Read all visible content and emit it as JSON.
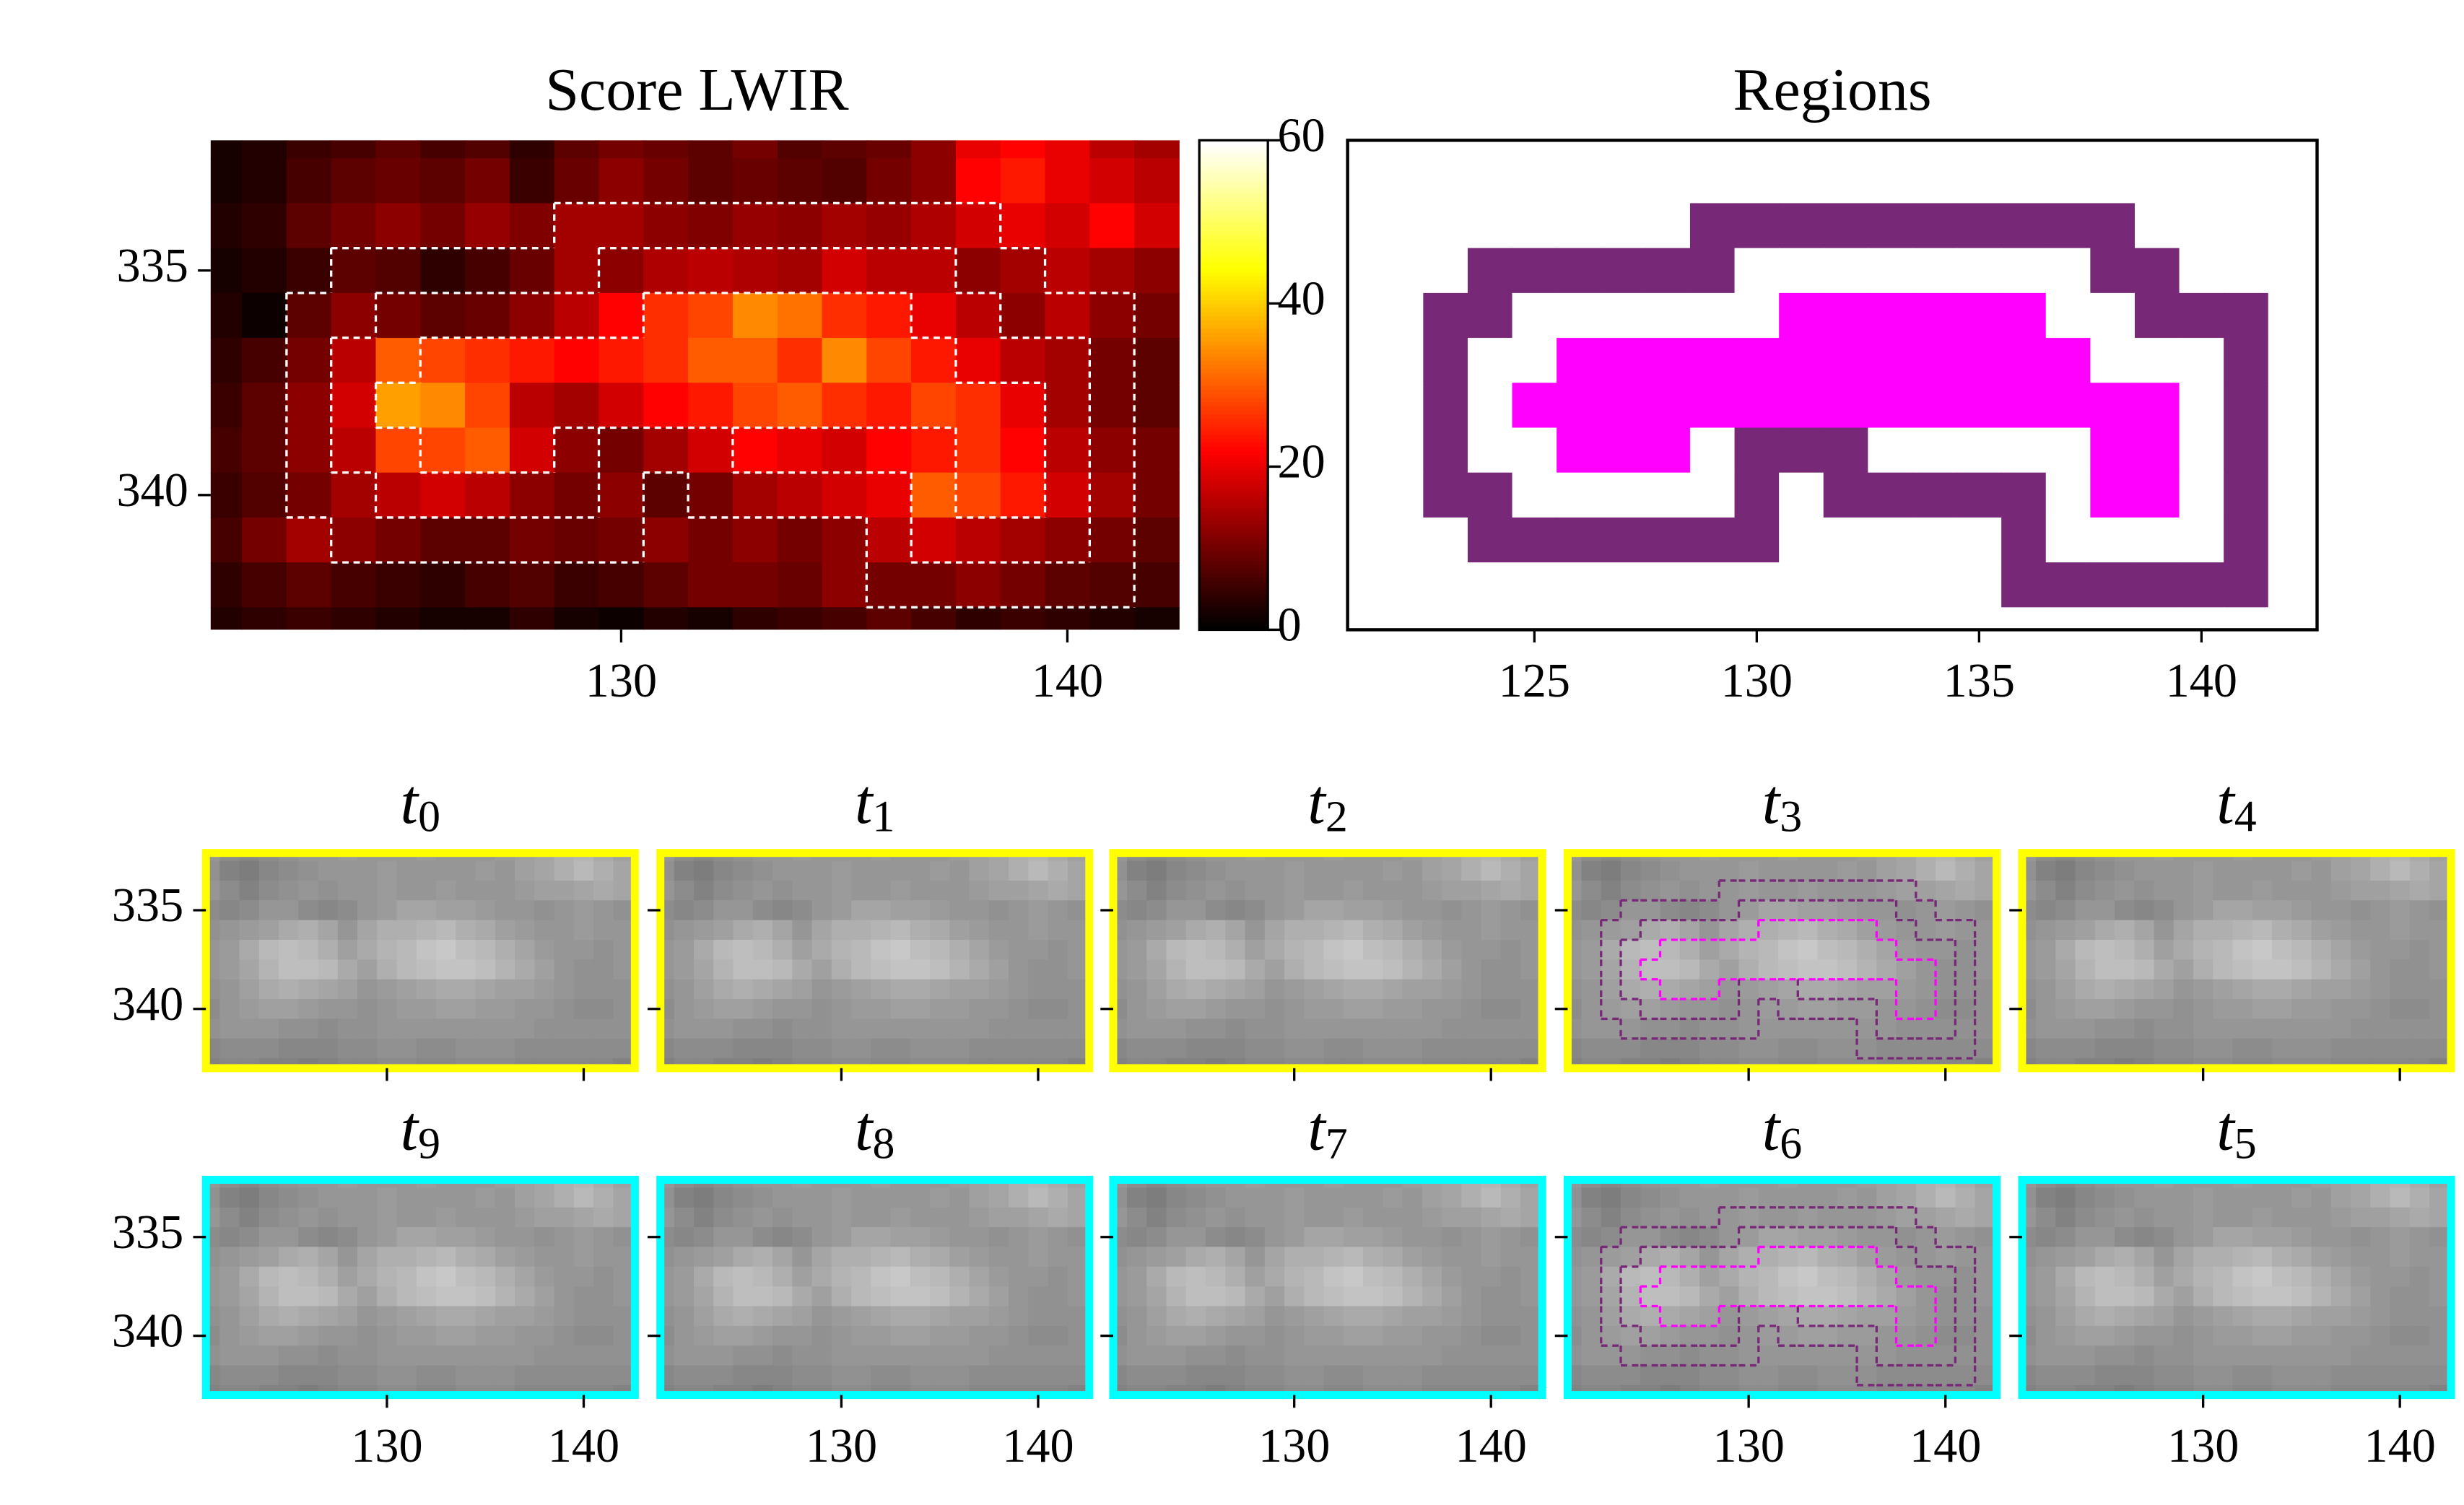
{
  "chart_data": [
    {
      "type": "heatmap",
      "title": "Score LWIR",
      "x": [
        121,
        122,
        123,
        124,
        125,
        126,
        127,
        128,
        129,
        130,
        131,
        132,
        133,
        134,
        135,
        136,
        137,
        138,
        139,
        140,
        141,
        142
      ],
      "y": [
        332,
        333,
        334,
        335,
        336,
        337,
        338,
        339,
        340,
        341,
        342,
        343
      ],
      "values": [
        [
          2,
          3,
          5,
          6,
          8,
          6,
          7,
          4,
          8,
          10,
          9,
          8,
          10,
          7,
          8,
          9,
          12,
          20,
          22,
          20,
          16,
          14
        ],
        [
          2,
          3,
          6,
          8,
          9,
          8,
          10,
          5,
          9,
          12,
          10,
          8,
          9,
          8,
          7,
          10,
          12,
          22,
          24,
          20,
          18,
          16
        ],
        [
          3,
          4,
          8,
          10,
          12,
          10,
          13,
          11,
          14,
          14,
          12,
          11,
          13,
          12,
          14,
          13,
          15,
          18,
          20,
          18,
          22,
          18
        ],
        [
          2,
          3,
          5,
          8,
          7,
          4,
          6,
          9,
          14,
          12,
          15,
          16,
          15,
          14,
          18,
          16,
          16,
          12,
          14,
          16,
          14,
          12
        ],
        [
          3,
          1,
          8,
          12,
          10,
          8,
          9,
          12,
          16,
          22,
          26,
          28,
          34,
          32,
          26,
          24,
          20,
          16,
          12,
          16,
          12,
          10
        ],
        [
          4,
          6,
          10,
          16,
          30,
          28,
          26,
          24,
          22,
          24,
          26,
          30,
          30,
          26,
          34,
          28,
          24,
          20,
          16,
          14,
          10,
          8
        ],
        [
          5,
          8,
          12,
          18,
          36,
          34,
          28,
          16,
          14,
          18,
          22,
          24,
          28,
          30,
          26,
          24,
          28,
          26,
          20,
          14,
          10,
          8
        ],
        [
          6,
          8,
          12,
          16,
          28,
          28,
          30,
          18,
          12,
          10,
          14,
          18,
          22,
          20,
          18,
          22,
          24,
          26,
          22,
          16,
          12,
          10
        ],
        [
          5,
          7,
          10,
          14,
          16,
          18,
          16,
          12,
          10,
          12,
          8,
          10,
          14,
          16,
          18,
          20,
          30,
          28,
          24,
          18,
          14,
          10
        ],
        [
          6,
          10,
          14,
          12,
          10,
          8,
          8,
          10,
          9,
          10,
          12,
          10,
          12,
          10,
          12,
          16,
          18,
          16,
          14,
          12,
          10,
          8
        ],
        [
          4,
          6,
          8,
          6,
          5,
          4,
          6,
          7,
          5,
          6,
          8,
          10,
          10,
          9,
          12,
          10,
          10,
          12,
          10,
          8,
          7,
          6
        ],
        [
          3,
          4,
          5,
          4,
          3,
          2,
          2,
          4,
          2,
          1,
          3,
          2,
          4,
          5,
          6,
          8,
          6,
          4,
          5,
          4,
          3,
          2
        ]
      ],
      "xlim": [
        120.8,
        142.6
      ],
      "ylim": [
        343,
        332.1
      ],
      "xticks": [
        130,
        140
      ],
      "yticks": [
        335,
        340
      ],
      "colormap": "hot",
      "clim": [
        0,
        60
      ],
      "colorbar_ticks": [
        0,
        20,
        40,
        60
      ],
      "contour_color": "#ffffff"
    },
    {
      "type": "regions",
      "title": "Regions",
      "x": [
        121,
        122,
        123,
        124,
        125,
        126,
        127,
        128,
        129,
        130,
        131,
        132,
        133,
        134,
        135,
        136,
        137,
        138,
        139,
        140,
        141,
        142
      ],
      "y": [
        332,
        333,
        334,
        335,
        336,
        337,
        338,
        339,
        340,
        341,
        342,
        343
      ],
      "values": [
        [
          0,
          0,
          0,
          0,
          0,
          0,
          0,
          0,
          0,
          0,
          0,
          0,
          0,
          0,
          0,
          0,
          0,
          0,
          0,
          0,
          0,
          0
        ],
        [
          0,
          0,
          0,
          0,
          0,
          0,
          0,
          0,
          0,
          0,
          0,
          0,
          0,
          0,
          0,
          0,
          0,
          0,
          0,
          0,
          0,
          0
        ],
        [
          0,
          0,
          0,
          0,
          0,
          0,
          0,
          0,
          1,
          1,
          1,
          1,
          1,
          1,
          1,
          1,
          1,
          1,
          0,
          0,
          0,
          0
        ],
        [
          0,
          0,
          0,
          1,
          1,
          1,
          1,
          1,
          1,
          0,
          0,
          0,
          0,
          0,
          0,
          0,
          0,
          1,
          1,
          0,
          0,
          0
        ],
        [
          0,
          0,
          1,
          1,
          0,
          0,
          0,
          0,
          0,
          0,
          2,
          2,
          2,
          2,
          2,
          2,
          0,
          0,
          1,
          1,
          1,
          0
        ],
        [
          0,
          0,
          1,
          0,
          0,
          2,
          2,
          2,
          2,
          2,
          2,
          2,
          2,
          2,
          2,
          2,
          2,
          0,
          0,
          0,
          1,
          0
        ],
        [
          0,
          0,
          1,
          0,
          2,
          2,
          2,
          2,
          2,
          2,
          2,
          2,
          2,
          2,
          2,
          2,
          2,
          2,
          2,
          0,
          1,
          0
        ],
        [
          0,
          0,
          1,
          0,
          0,
          2,
          2,
          2,
          0,
          1,
          1,
          1,
          0,
          0,
          0,
          0,
          0,
          2,
          2,
          0,
          1,
          0
        ],
        [
          0,
          0,
          1,
          1,
          0,
          0,
          0,
          0,
          0,
          1,
          0,
          1,
          1,
          1,
          1,
          1,
          0,
          2,
          2,
          0,
          1,
          0
        ],
        [
          0,
          0,
          0,
          1,
          1,
          1,
          1,
          1,
          1,
          1,
          0,
          0,
          0,
          0,
          0,
          1,
          0,
          0,
          0,
          0,
          1,
          0
        ],
        [
          0,
          0,
          0,
          0,
          0,
          0,
          0,
          0,
          0,
          0,
          0,
          0,
          0,
          0,
          0,
          1,
          1,
          1,
          1,
          1,
          1,
          0
        ],
        [
          0,
          0,
          0,
          0,
          0,
          0,
          0,
          0,
          0,
          0,
          0,
          0,
          0,
          0,
          0,
          0,
          0,
          0,
          0,
          0,
          0,
          0
        ]
      ],
      "colors": [
        "#ffffff",
        "#772877",
        "#ff00ff"
      ],
      "xlim": [
        120.8,
        142.6
      ],
      "ylim": [
        343,
        332.1
      ],
      "xticks": [
        125,
        130,
        135,
        140
      ]
    },
    {
      "type": "frames",
      "x": [
        121,
        122,
        123,
        124,
        125,
        126,
        127,
        128,
        129,
        130,
        131,
        132,
        133,
        134,
        135,
        136,
        137,
        138,
        139,
        140,
        141,
        142
      ],
      "y": [
        332,
        333,
        334,
        335,
        336,
        337,
        338,
        339,
        340,
        341,
        342,
        343
      ],
      "values": [
        [
          150,
          140,
          135,
          140,
          145,
          150,
          150,
          155,
          150,
          150,
          150,
          155,
          150,
          150,
          150,
          155,
          160,
          165,
          175,
          180,
          170,
          160
        ],
        [
          145,
          130,
          125,
          135,
          140,
          145,
          150,
          150,
          150,
          155,
          150,
          150,
          150,
          150,
          155,
          150,
          160,
          165,
          175,
          185,
          175,
          165
        ],
        [
          150,
          140,
          130,
          140,
          145,
          150,
          145,
          150,
          150,
          155,
          150,
          150,
          155,
          150,
          150,
          150,
          155,
          160,
          160,
          165,
          170,
          165
        ],
        [
          140,
          135,
          140,
          150,
          150,
          140,
          135,
          140,
          150,
          155,
          165,
          165,
          160,
          160,
          155,
          150,
          150,
          145,
          150,
          155,
          150,
          145
        ],
        [
          145,
          150,
          155,
          160,
          170,
          175,
          165,
          150,
          165,
          175,
          175,
          180,
          185,
          175,
          170,
          160,
          155,
          150,
          150,
          155,
          150,
          150
        ],
        [
          150,
          155,
          170,
          185,
          190,
          185,
          175,
          160,
          170,
          180,
          185,
          195,
          200,
          190,
          185,
          175,
          165,
          155,
          150,
          150,
          145,
          150
        ],
        [
          150,
          155,
          165,
          180,
          190,
          190,
          185,
          170,
          160,
          175,
          185,
          190,
          195,
          195,
          190,
          180,
          170,
          160,
          150,
          145,
          145,
          150
        ],
        [
          145,
          150,
          160,
          170,
          175,
          170,
          165,
          160,
          150,
          155,
          160,
          165,
          170,
          170,
          165,
          160,
          160,
          155,
          150,
          145,
          145,
          145
        ],
        [
          140,
          150,
          155,
          160,
          160,
          155,
          150,
          150,
          145,
          150,
          155,
          155,
          160,
          160,
          155,
          155,
          150,
          150,
          145,
          140,
          140,
          145
        ],
        [
          145,
          150,
          150,
          150,
          145,
          145,
          140,
          145,
          145,
          150,
          150,
          150,
          150,
          150,
          150,
          150,
          150,
          145,
          145,
          145,
          145,
          145
        ],
        [
          135,
          140,
          140,
          140,
          135,
          135,
          135,
          140,
          140,
          145,
          145,
          140,
          140,
          145,
          145,
          145,
          140,
          140,
          140,
          140,
          140,
          140
        ],
        [
          130,
          135,
          135,
          130,
          130,
          125,
          130,
          135,
          135,
          140,
          140,
          135,
          135,
          140,
          140,
          140,
          135,
          135,
          135,
          135,
          135,
          130
        ]
      ],
      "xlim": [
        120.8,
        142.6
      ],
      "ylim": [
        343,
        332.1
      ],
      "xticks": [
        130,
        140
      ],
      "yticks": [
        335,
        340
      ],
      "frames": [
        {
          "symbol": "t",
          "subscript": "0",
          "border": "#ffff00",
          "contours": false
        },
        {
          "symbol": "t",
          "subscript": "1",
          "border": "#ffff00",
          "contours": false
        },
        {
          "symbol": "t",
          "subscript": "2",
          "border": "#ffff00",
          "contours": false
        },
        {
          "symbol": "t",
          "subscript": "3",
          "border": "#ffff00",
          "contours": true
        },
        {
          "symbol": "t",
          "subscript": "4",
          "border": "#ffff00",
          "contours": false
        },
        {
          "symbol": "t",
          "subscript": "9",
          "border": "#00ffff",
          "contours": false
        },
        {
          "symbol": "t",
          "subscript": "8",
          "border": "#00ffff",
          "contours": false
        },
        {
          "symbol": "t",
          "subscript": "7",
          "border": "#00ffff",
          "contours": false
        },
        {
          "symbol": "t",
          "subscript": "6",
          "border": "#00ffff",
          "contours": true
        },
        {
          "symbol": "t",
          "subscript": "5",
          "border": "#00ffff",
          "contours": false
        }
      ]
    }
  ]
}
